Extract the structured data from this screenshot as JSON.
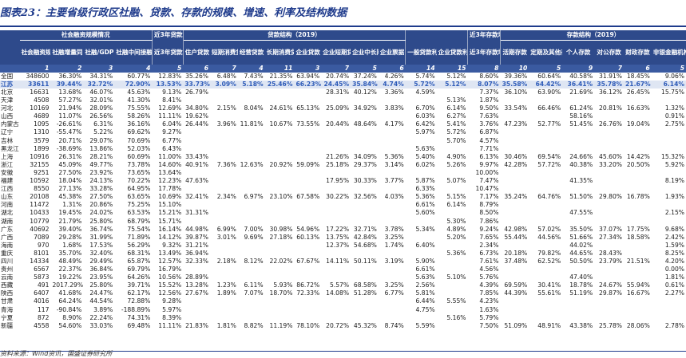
{
  "title": "图表23：主要省级行政区社融、贷款、存款的规模、增速、利率及结构数据",
  "source": "资料来源：Wind资讯，国盛证券研究所",
  "header": {
    "groups": [
      "社会融资规模情况",
      "近3年贷款增速",
      "贷款结构（2019）",
      "一般贷款利率",
      "企业贷款利率",
      "近3年存款增速",
      "存款结构（2019）"
    ],
    "columns": [
      "",
      "社会融资规模（亿元）",
      "社融增量同比增速",
      "社融/GDP",
      "社融中间接融资占比",
      "近3年贷款增速（2017-2019）",
      "住户贷款",
      "短期消费贷",
      "经营贷款",
      "长期消费贷",
      "企业贷款",
      "企业短期贷款",
      "企业中长期",
      "企业票据",
      "一般贷款利率",
      "企业贷款利率",
      "近3年存款增速（2017-2019）",
      "活期存款",
      "定期及其他存款",
      "个人存款",
      "对公存款",
      "财政存款",
      "非银金融机构"
    ],
    "numbers": [
      "1",
      "2",
      "3",
      "4",
      "5",
      "6",
      "7",
      "4",
      "11",
      "3",
      "7",
      "5",
      "6",
      "14",
      "15",
      "8",
      "10",
      "5",
      "9",
      "7",
      "6",
      "5"
    ]
  },
  "aggregates": [
    {
      "label": "全国",
      "values": [
        "348600",
        "36.30%",
        "34.31%",
        "60.77%",
        "12.83%",
        "35.26%",
        "6.48%",
        "7.43%",
        "21.35%",
        "63.94%",
        "20.74%",
        "37.24%",
        "4.26%",
        "5.74%",
        "5.12%",
        "8.60%",
        "39.36%",
        "60.64%",
        "40.58%",
        "31.91%",
        "18.45%",
        "9.06%"
      ]
    },
    {
      "label": "江苏",
      "values": [
        "33611",
        "39.44%",
        "32.72%",
        "72.90%",
        "13.53%",
        "33.73%",
        "3.09%",
        "5.18%",
        "25.46%",
        "66.23%",
        "24.45%",
        "35.84%",
        "4.74%",
        "5.72%",
        "5.12%",
        "8.07%",
        "35.58%",
        "64.42%",
        "36.41%",
        "35.78%",
        "21.67%",
        "6.14%"
      ]
    }
  ],
  "rows": [
    {
      "label": "北京",
      "values": [
        "16631",
        "13.68%",
        "46.07%",
        "45.63%",
        "9.13%",
        "26.79%",
        "",
        "",
        "",
        "",
        "28.31%",
        "40.12%",
        "3.36%",
        "4.59%",
        "",
        "7.37%",
        "36.10%",
        "63.90%",
        "21.69%",
        "36.12%",
        "26.45%",
        "15.75%"
      ]
    },
    {
      "label": "天津",
      "values": [
        "4508",
        "57.27%",
        "32.01%",
        "41.30%",
        "8.41%",
        "",
        "",
        "",
        "",
        "",
        "",
        "",
        "",
        "",
        "5.13%",
        "1.87%",
        "",
        "",
        "",
        "",
        "",
        ""
      ]
    },
    {
      "label": "河北",
      "values": [
        "10169",
        "21.94%",
        "28.09%",
        "75.55%",
        "12.69%",
        "34.80%",
        "2.15%",
        "8.04%",
        "24.61%",
        "65.13%",
        "25.09%",
        "34.92%",
        "3.83%",
        "6.70%",
        "6.14%",
        "9.50%",
        "33.54%",
        "66.46%",
        "61.24%",
        "20.81%",
        "16.63%",
        "1.32%"
      ]
    },
    {
      "label": "山西",
      "values": [
        "4689",
        "11.07%",
        "26.56%",
        "58.26%",
        "11.11%",
        "19.62%",
        "",
        "",
        "",
        "",
        "",
        "",
        "",
        "6.03%",
        "6.27%",
        "7.63%",
        "",
        "",
        "58.16%",
        "",
        "",
        "0.91%"
      ]
    },
    {
      "label": "内蒙古",
      "values": [
        "1095",
        "-26.61%",
        "6.31%",
        "36.16%",
        "6.04%",
        "26.44%",
        "3.96%",
        "11.81%",
        "10.67%",
        "73.55%",
        "20.44%",
        "48.64%",
        "4.17%",
        "6.42%",
        "5.41%",
        "3.76%",
        "47.23%",
        "52.77%",
        "51.45%",
        "26.76%",
        "19.04%",
        "2.75%"
      ]
    },
    {
      "label": "辽宁",
      "values": [
        "1310",
        "-55.47%",
        "5.22%",
        "69.62%",
        "9.27%",
        "",
        "",
        "",
        "",
        "",
        "",
        "",
        "",
        "5.97%",
        "5.72%",
        "6.87%",
        "",
        "",
        "",
        "",
        "",
        ""
      ]
    },
    {
      "label": "吉林",
      "values": [
        "3579",
        "20.71%",
        "29.07%",
        "70.69%",
        "6.77%",
        "",
        "",
        "",
        "",
        "",
        "",
        "",
        "",
        "",
        "5.70%",
        "4.57%",
        "",
        "",
        "",
        "",
        "",
        ""
      ]
    },
    {
      "label": "黑龙江",
      "values": [
        "1899",
        "-38.69%",
        "13.86%",
        "52.03%",
        "6.43%",
        "",
        "",
        "",
        "",
        "",
        "",
        "",
        "",
        "5.63%",
        "",
        "7.71%",
        "",
        "",
        "",
        "",
        "",
        ""
      ]
    },
    {
      "label": "上海",
      "values": [
        "10916",
        "26.31%",
        "28.21%",
        "60.69%",
        "11.00%",
        "33.43%",
        "",
        "",
        "",
        "",
        "21.26%",
        "34.09%",
        "5.36%",
        "5.40%",
        "4.90%",
        "6.13%",
        "30.46%",
        "69.54%",
        "24.66%",
        "45.60%",
        "14.42%",
        "15.32%"
      ]
    },
    {
      "label": "浙江",
      "values": [
        "32155",
        "45.09%",
        "49.77%",
        "73.78%",
        "14.60%",
        "40.91%",
        "7.36%",
        "12.63%",
        "20.92%",
        "59.09%",
        "25.18%",
        "29.37%",
        "3.14%",
        "6.02%",
        "5.26%",
        "9.97%",
        "42.28%",
        "57.72%",
        "40.38%",
        "33.20%",
        "20.50%",
        "5.92%"
      ]
    },
    {
      "label": "安徽",
      "values": [
        "9251",
        "27.50%",
        "23.92%",
        "73.65%",
        "13.64%",
        "",
        "",
        "",
        "",
        "",
        "",
        "",
        "",
        "",
        "",
        "10.00%",
        "",
        "",
        "",
        "",
        "",
        ""
      ]
    },
    {
      "label": "福建",
      "values": [
        "10592",
        "18.04%",
        "24.13%",
        "70.22%",
        "12.23%",
        "47.63%",
        "",
        "",
        "",
        "",
        "17.95%",
        "30.33%",
        "3.77%",
        "5.87%",
        "5.07%",
        "7.47%",
        "",
        "",
        "41.35%",
        "",
        "",
        "8.19%"
      ]
    },
    {
      "label": "江西",
      "values": [
        "8550",
        "27.13%",
        "33.28%",
        "64.95%",
        "17.78%",
        "",
        "",
        "",
        "",
        "",
        "",
        "",
        "",
        "6.33%",
        "",
        "10.47%",
        "",
        "",
        "",
        "",
        "",
        ""
      ]
    },
    {
      "label": "山东",
      "values": [
        "20108",
        "45.38%",
        "27.50%",
        "63.65%",
        "10.69%",
        "32.41%",
        "2.34%",
        "6.97%",
        "23.10%",
        "67.58%",
        "30.22%",
        "32.56%",
        "4.03%",
        "5.36%",
        "5.15%",
        "7.17%",
        "35.24%",
        "64.76%",
        "51.50%",
        "29.80%",
        "16.78%",
        "1.93%"
      ]
    },
    {
      "label": "河南",
      "values": [
        "11472",
        "1.31%",
        "20.86%",
        "75.25%",
        "15.10%",
        "",
        "",
        "",
        "",
        "",
        "",
        "",
        "",
        "6.61%",
        "6.14%",
        "8.79%",
        "",
        "",
        "",
        "",
        "",
        ""
      ]
    },
    {
      "label": "湖北",
      "values": [
        "10433",
        "19.45%",
        "24.02%",
        "63.53%",
        "15.21%",
        "31.31%",
        "",
        "",
        "",
        "",
        "",
        "",
        "",
        "5.60%",
        "",
        "8.50%",
        "",
        "",
        "47.55%",
        "",
        "",
        "2.15%"
      ]
    },
    {
      "label": "湖南",
      "values": [
        "10779",
        "21.79%",
        "25.80%",
        "68.79%",
        "15.71%",
        "",
        "",
        "",
        "",
        "",
        "",
        "",
        "",
        "",
        "5.30%",
        "7.86%",
        "",
        "",
        "",
        "",
        "",
        ""
      ]
    },
    {
      "label": "广东",
      "values": [
        "40692",
        "39.40%",
        "36.74%",
        "75.54%",
        "16.14%",
        "44.98%",
        "6.99%",
        "7.00%",
        "30.98%",
        "54.96%",
        "17.22%",
        "32.71%",
        "3.78%",
        "5.34%",
        "4.89%",
        "9.24%",
        "42.98%",
        "57.02%",
        "35.50%",
        "37.07%",
        "17.75%",
        "9.68%"
      ]
    },
    {
      "label": "广西",
      "values": [
        "7089",
        "29.28%",
        "31.99%",
        "71.89%",
        "14.12%",
        "39.87%",
        "3.01%",
        "9.69%",
        "27.18%",
        "60.13%",
        "13.75%",
        "42.84%",
        "3.25%",
        "",
        "5.20%",
        "7.65%",
        "55.44%",
        "44.56%",
        "51.66%",
        "27.34%",
        "18.58%",
        "2.42%"
      ]
    },
    {
      "label": "海南",
      "values": [
        "970",
        "1.68%",
        "17.53%",
        "56.29%",
        "9.32%",
        "31.21%",
        "",
        "",
        "",
        "",
        "12.37%",
        "54.68%",
        "1.74%",
        "6.40%",
        "",
        "2.34%",
        "",
        "",
        "44.02%",
        "",
        "",
        "1.59%"
      ]
    },
    {
      "label": "重庆",
      "values": [
        "8101",
        "35.70%",
        "32.40%",
        "68.31%",
        "13.49%",
        "36.94%",
        "",
        "",
        "",
        "",
        "",
        "",
        "",
        "",
        "5.36%",
        "6.73%",
        "20.18%",
        "79.82%",
        "44.65%",
        "28.43%",
        "",
        "8.25%"
      ]
    },
    {
      "label": "四川",
      "values": [
        "14334",
        "48.49%",
        "29.49%",
        "65.87%",
        "12.57%",
        "32.33%",
        "2.18%",
        "8.12%",
        "22.02%",
        "67.67%",
        "14.11%",
        "50.11%",
        "3.19%",
        "5.90%",
        "",
        "7.61%",
        "37.48%",
        "62.52%",
        "50.50%",
        "23.79%",
        "21.51%",
        "4.20%"
      ]
    },
    {
      "label": "贵州",
      "values": [
        "6567",
        "22.37%",
        "36.84%",
        "69.79%",
        "16.79%",
        "",
        "",
        "",
        "",
        "",
        "",
        "",
        "",
        "6.61%",
        "",
        "4.56%",
        "",
        "",
        "",
        "",
        "",
        "0.00%"
      ]
    },
    {
      "label": "云南",
      "values": [
        "5873",
        "19.22%",
        "23.95%",
        "64.26%",
        "10.56%",
        "28.89%",
        "",
        "",
        "",
        "",
        "",
        "",
        "",
        "5.63%",
        "5.10%",
        "5.76%",
        "",
        "",
        "47.40%",
        "",
        "",
        "1.81%"
      ]
    },
    {
      "label": "西藏",
      "values": [
        "491",
        "2017.29%",
        "25.80%",
        "39.71%",
        "15.52%",
        "13.28%",
        "1.23%",
        "6.11%",
        "5.93%",
        "86.72%",
        "5.57%",
        "68.58%",
        "3.25%",
        "2.56%",
        "",
        "4.39%",
        "69.59%",
        "30.41%",
        "18.78%",
        "24.67%",
        "55.94%",
        "0.61%"
      ]
    },
    {
      "label": "陕西",
      "values": [
        "6407",
        "41.68%",
        "24.47%",
        "62.17%",
        "12.56%",
        "27.67%",
        "1.89%",
        "7.07%",
        "18.70%",
        "72.33%",
        "14.08%",
        "51.28%",
        "6.77%",
        "5.81%",
        "",
        "7.85%",
        "44.39%",
        "55.61%",
        "51.19%",
        "29.87%",
        "16.67%",
        "2.27%"
      ]
    },
    {
      "label": "甘肃",
      "values": [
        "4016",
        "64.24%",
        "44.54%",
        "72.88%",
        "9.28%",
        "",
        "",
        "",
        "",
        "",
        "",
        "",
        "",
        "6.44%",
        "5.55%",
        "4.23%",
        "",
        "",
        "",
        "",
        "",
        ""
      ]
    },
    {
      "label": "青海",
      "values": [
        "117",
        "-90.84%",
        "3.89%",
        "-188.89%",
        "5.97%",
        "",
        "",
        "",
        "",
        "",
        "",
        "",
        "",
        "4.75%",
        "",
        "1.63%",
        "",
        "",
        "",
        "",
        "",
        ""
      ]
    },
    {
      "label": "宁夏",
      "values": [
        "872",
        "8.90%",
        "22.24%",
        "74.31%",
        "8.39%",
        "",
        "",
        "",
        "",
        "",
        "",
        "",
        "",
        "",
        "5.16%",
        "5.79%",
        "",
        "",
        "",
        "",
        "",
        ""
      ]
    },
    {
      "label": "新疆",
      "values": [
        "4558",
        "54.60%",
        "33.03%",
        "69.48%",
        "11.11%",
        "21.83%",
        "1.81%",
        "8.82%",
        "11.19%",
        "78.10%",
        "20.72%",
        "45.32%",
        "8.74%",
        "5.59%",
        "",
        "7.50%",
        "51.09%",
        "48.91%",
        "43.38%",
        "25.78%",
        "28.06%",
        "2.78%"
      ]
    }
  ]
}
